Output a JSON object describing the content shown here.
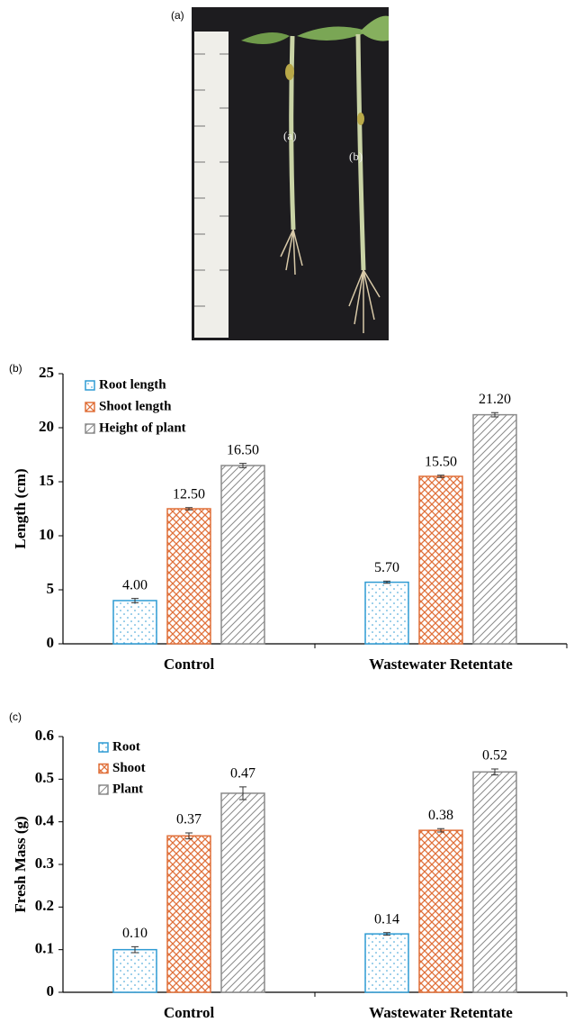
{
  "panel_labels": [
    "(a)",
    "(b)",
    "(c)"
  ],
  "photo": {
    "labels": [
      "(a)",
      "(b)"
    ]
  },
  "chart_data": [
    {
      "type": "bar",
      "y_label": "Length (cm)",
      "categories": [
        "Control",
        "Wastewater Retentate"
      ],
      "series": [
        {
          "name": "Root length",
          "color": "#2f9bd3",
          "hatch": "dots",
          "values": [
            4.0,
            5.7
          ],
          "value_labels": [
            "4.00",
            "5.70"
          ],
          "errors": [
            0.2,
            0.1
          ]
        },
        {
          "name": "Shoot length",
          "color": "#e0703a",
          "hatch": "cross",
          "values": [
            12.5,
            15.5
          ],
          "value_labels": [
            "12.50",
            "15.50"
          ],
          "errors": [
            0.1,
            0.1
          ]
        },
        {
          "name": "Height of plant",
          "color": "#8a8a8a",
          "hatch": "diagonal",
          "values": [
            16.5,
            21.2
          ],
          "value_labels": [
            "16.50",
            "21.20"
          ],
          "errors": [
            0.2,
            0.2
          ]
        }
      ],
      "ylim": [
        0,
        25
      ],
      "yticks": [
        0,
        5,
        10,
        15,
        20,
        25
      ],
      "legend": "upper-left"
    },
    {
      "type": "bar",
      "y_label": "Fresh Mass (g)",
      "categories": [
        "Control",
        "Wastewater Retentate"
      ],
      "series": [
        {
          "name": "Root",
          "color": "#2f9bd3",
          "hatch": "dots",
          "values": [
            0.1,
            0.137
          ],
          "value_labels": [
            "0.10",
            "0.14"
          ],
          "errors": [
            0.007,
            0.003
          ]
        },
        {
          "name": "Shoot",
          "color": "#e0703a",
          "hatch": "cross",
          "values": [
            0.367,
            0.38
          ],
          "value_labels": [
            "0.37",
            "0.38"
          ],
          "errors": [
            0.007,
            0.004
          ]
        },
        {
          "name": "Plant",
          "color": "#8a8a8a",
          "hatch": "diagonal",
          "values": [
            0.467,
            0.517
          ],
          "value_labels": [
            "0.47",
            "0.52"
          ],
          "errors": [
            0.015,
            0.007
          ]
        }
      ],
      "ylim": [
        0,
        0.6
      ],
      "yticks": [
        0,
        0.1,
        0.2,
        0.3,
        0.4,
        0.5,
        0.6
      ],
      "legend": "upper-left"
    }
  ]
}
